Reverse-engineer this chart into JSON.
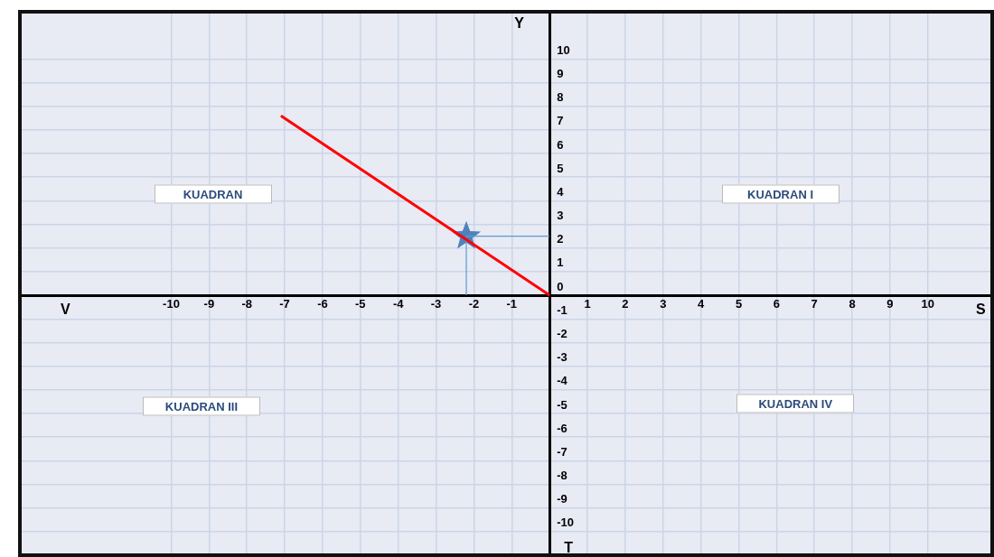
{
  "chart_data": {
    "type": "line",
    "xlim": [
      -14,
      11.7
    ],
    "ylim": [
      -11,
      12
    ],
    "xticks": [
      -10,
      -9,
      -8,
      -7,
      -6,
      -5,
      -4,
      -3,
      -2,
      -1,
      1,
      2,
      3,
      4,
      5,
      6,
      7,
      8,
      9,
      10
    ],
    "yticks": [
      -10,
      -9,
      -8,
      -7,
      -6,
      -5,
      -4,
      -3,
      -2,
      -1,
      0,
      1,
      2,
      3,
      4,
      5,
      6,
      7,
      8,
      9,
      10
    ],
    "grid": true,
    "legend": false,
    "series": [
      {
        "color": "#ff0000",
        "x": [
          0,
          -7.1
        ],
        "values": [
          0,
          7.6
        ],
        "marker": "none"
      },
      {
        "color": "#5b9bd5",
        "x": [
          -2.2,
          -2.2
        ],
        "values": [
          0,
          2.5
        ]
      },
      {
        "color": "#5b9bd5",
        "x": [
          -2.2,
          0
        ],
        "values": [
          2.5,
          2.5
        ]
      },
      {
        "type": "scatter",
        "color": "#4f81bd",
        "x": [
          -2.2
        ],
        "values": [
          2.5
        ],
        "marker": "star"
      }
    ],
    "annotations": [
      "Y",
      "S",
      "V",
      "T",
      "KUADRAN",
      "KUADRAN I",
      "KUADRAN III",
      "KUADRAN IV"
    ]
  }
}
